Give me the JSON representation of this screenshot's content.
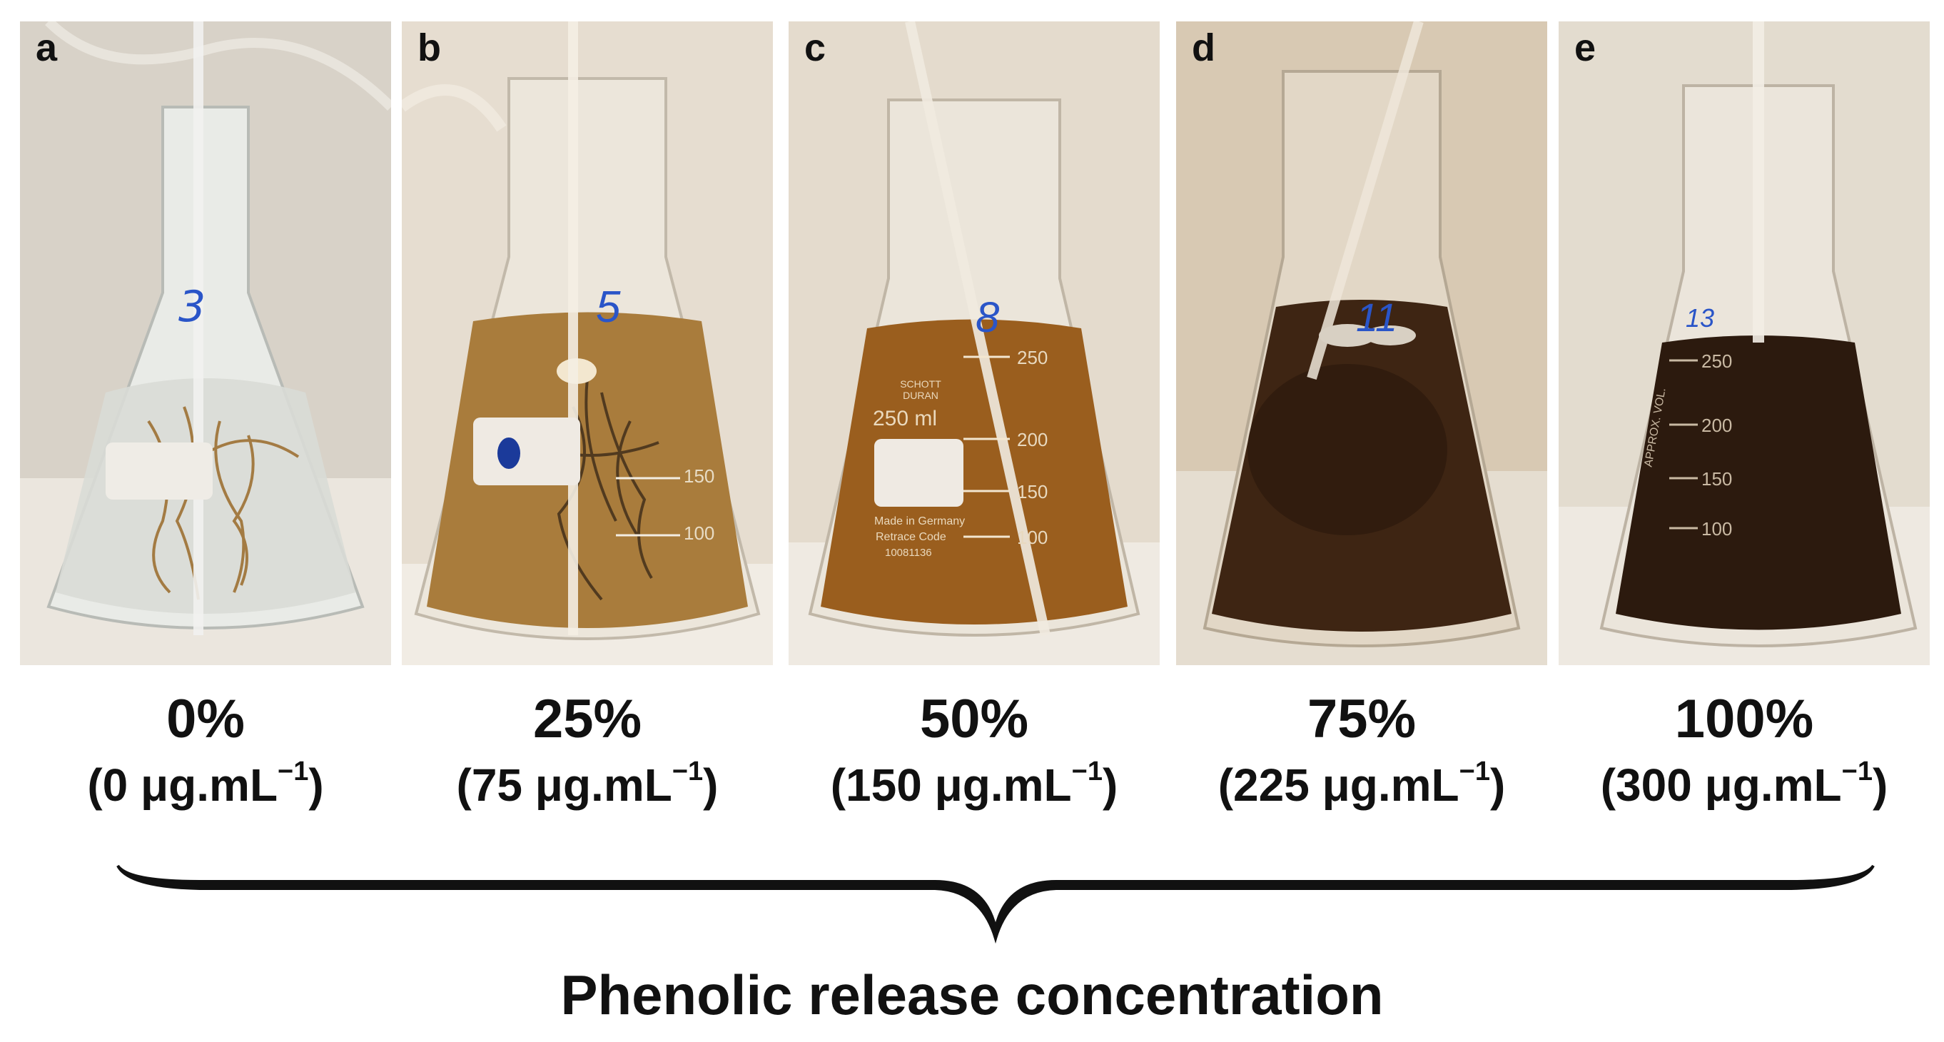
{
  "panels": [
    {
      "letter": "a",
      "flask_label": "3",
      "percent": "0%",
      "conc_value": "(0 μg.mL",
      "conc_sup": "−1",
      "conc_close": ")",
      "liquid": "#d9dcd6",
      "bg": "#d8d2c8"
    },
    {
      "letter": "b",
      "flask_label": "5",
      "percent": "25%",
      "conc_value": "(75 μg.mL",
      "conc_sup": "−1",
      "conc_close": ")",
      "liquid": "#a97c3c",
      "bg": "#e6ddd0"
    },
    {
      "letter": "c",
      "flask_label": "8",
      "percent": "50%",
      "conc_value": "(150 μg.mL",
      "conc_sup": "−1",
      "conc_close": ")",
      "liquid": "#9a5e1e",
      "bg": "#e4dbcd"
    },
    {
      "letter": "d",
      "flask_label": "11",
      "percent": "75%",
      "conc_value": "(225 μg.mL",
      "conc_sup": "−1",
      "conc_close": ")",
      "liquid": "#3e2513",
      "bg": "#d8c9b3"
    },
    {
      "letter": "e",
      "flask_label": "13",
      "percent": "100%",
      "conc_value": "(300 μg.mL",
      "conc_sup": "−1",
      "conc_close": ")",
      "liquid": "#2c1a0e",
      "bg": "#e3dccf"
    }
  ],
  "flask_text": {
    "volume_marks": [
      "250",
      "200",
      "150",
      "100"
    ],
    "brand": "SCHOTT DURAN",
    "volume": "250 ml",
    "approx": "APPROX. VOL.",
    "made_in": "Made in Germany",
    "retrace": "Retrace Code",
    "retrace_code": "10081136"
  },
  "axis_title": "Phenolic release concentration"
}
